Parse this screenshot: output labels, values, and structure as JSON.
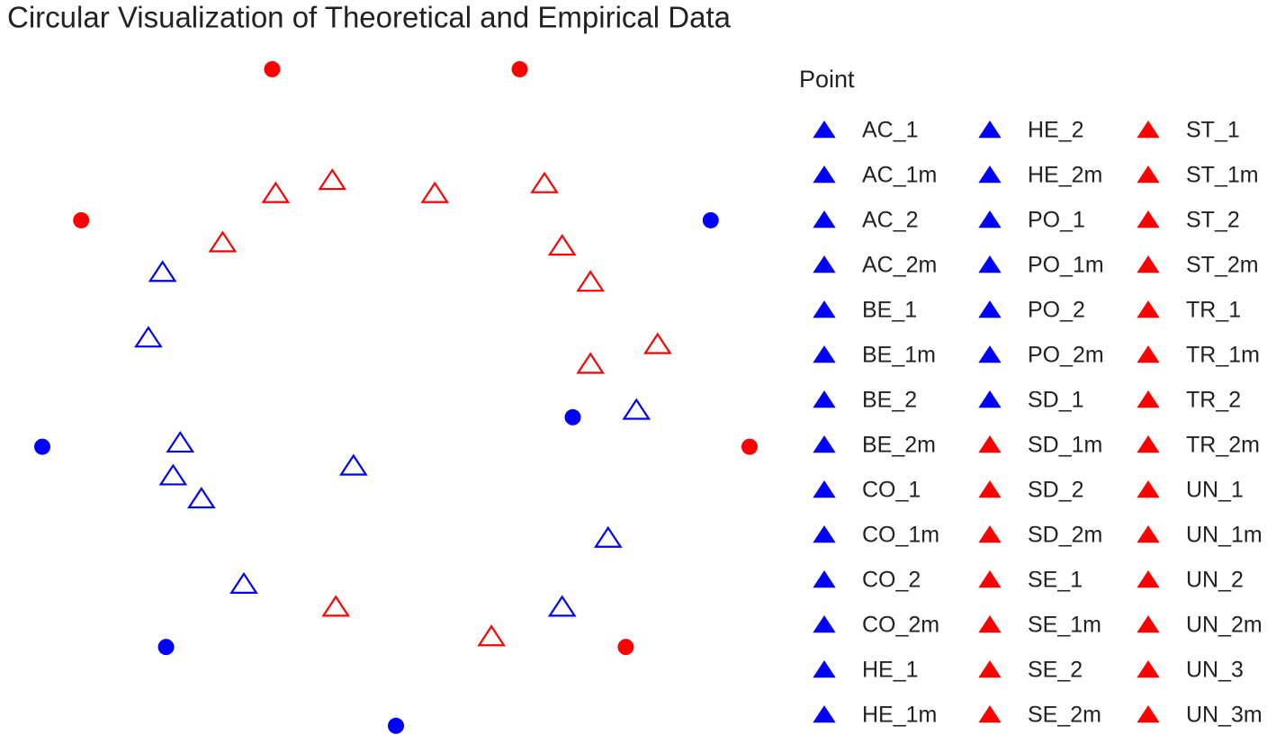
{
  "chart_data": {
    "type": "scatter",
    "title": "Circular Visualization of Theoretical and Empirical Data",
    "xlim": [
      -1.1,
      1.1
    ],
    "ylim": [
      -1.05,
      1.1
    ],
    "groups": [
      {
        "color": "#0000ff",
        "shape": "circle",
        "x": [
          0.89,
          0.5,
          -1.0,
          -0.65,
          0.0
        ],
        "y": [
          0.54,
          -0.06,
          -0.15,
          -0.76,
          -1.0
        ]
      },
      {
        "color": "#ff0000",
        "shape": "circle",
        "x": [
          -0.35,
          0.35,
          -0.89,
          1.0,
          0.65
        ],
        "y": [
          1.0,
          1.0,
          0.54,
          -0.15,
          -0.76
        ]
      },
      {
        "color": "#ff0000",
        "shape": "triangle",
        "x": [
          -0.34,
          -0.18,
          0.11,
          0.42,
          -0.49,
          0.47,
          0.55,
          0.74,
          0.55,
          -0.17,
          0.27
        ],
        "y": [
          0.62,
          0.66,
          0.62,
          0.65,
          0.47,
          0.46,
          0.35,
          0.16,
          0.1,
          -0.64,
          -0.73
        ]
      },
      {
        "color": "#0000ff",
        "shape": "triangle",
        "x": [
          -0.66,
          -0.7,
          0.68,
          -0.61,
          -0.63,
          -0.12,
          -0.55,
          0.6,
          -0.43,
          0.47
        ],
        "y": [
          0.38,
          0.18,
          -0.04,
          -0.14,
          -0.24,
          -0.21,
          -0.31,
          -0.43,
          -0.57,
          -0.64
        ]
      }
    ],
    "legend": {
      "title": "Point",
      "items": [
        {
          "name": "AC_1",
          "color": "#0000ff"
        },
        {
          "name": "AC_1m",
          "color": "#0000ff"
        },
        {
          "name": "AC_2",
          "color": "#0000ff"
        },
        {
          "name": "AC_2m",
          "color": "#0000ff"
        },
        {
          "name": "BE_1",
          "color": "#0000ff"
        },
        {
          "name": "BE_1m",
          "color": "#0000ff"
        },
        {
          "name": "BE_2",
          "color": "#0000ff"
        },
        {
          "name": "BE_2m",
          "color": "#0000ff"
        },
        {
          "name": "CO_1",
          "color": "#0000ff"
        },
        {
          "name": "CO_1m",
          "color": "#0000ff"
        },
        {
          "name": "CO_2",
          "color": "#0000ff"
        },
        {
          "name": "CO_2m",
          "color": "#0000ff"
        },
        {
          "name": "HE_1",
          "color": "#0000ff"
        },
        {
          "name": "HE_1m",
          "color": "#0000ff"
        },
        {
          "name": "HE_2",
          "color": "#0000ff"
        },
        {
          "name": "HE_2m",
          "color": "#0000ff"
        },
        {
          "name": "PO_1",
          "color": "#0000ff"
        },
        {
          "name": "PO_1m",
          "color": "#0000ff"
        },
        {
          "name": "PO_2",
          "color": "#0000ff"
        },
        {
          "name": "PO_2m",
          "color": "#0000ff"
        },
        {
          "name": "SD_1",
          "color": "#0000ff"
        },
        {
          "name": "SD_1m",
          "color": "#ff0000"
        },
        {
          "name": "SD_2",
          "color": "#ff0000"
        },
        {
          "name": "SD_2m",
          "color": "#ff0000"
        },
        {
          "name": "SE_1",
          "color": "#ff0000"
        },
        {
          "name": "SE_1m",
          "color": "#ff0000"
        },
        {
          "name": "SE_2",
          "color": "#ff0000"
        },
        {
          "name": "SE_2m",
          "color": "#ff0000"
        },
        {
          "name": "ST_1",
          "color": "#ff0000"
        },
        {
          "name": "ST_1m",
          "color": "#ff0000"
        },
        {
          "name": "ST_2",
          "color": "#ff0000"
        },
        {
          "name": "ST_2m",
          "color": "#ff0000"
        },
        {
          "name": "TR_1",
          "color": "#ff0000"
        },
        {
          "name": "TR_1m",
          "color": "#ff0000"
        },
        {
          "name": "TR_2",
          "color": "#ff0000"
        },
        {
          "name": "TR_2m",
          "color": "#ff0000"
        },
        {
          "name": "UN_1",
          "color": "#ff0000"
        },
        {
          "name": "UN_1m",
          "color": "#ff0000"
        },
        {
          "name": "UN_2",
          "color": "#ff0000"
        },
        {
          "name": "UN_2m",
          "color": "#ff0000"
        },
        {
          "name": "UN_3",
          "color": "#ff0000"
        },
        {
          "name": "UN_3m",
          "color": "#ff0000"
        }
      ]
    }
  }
}
